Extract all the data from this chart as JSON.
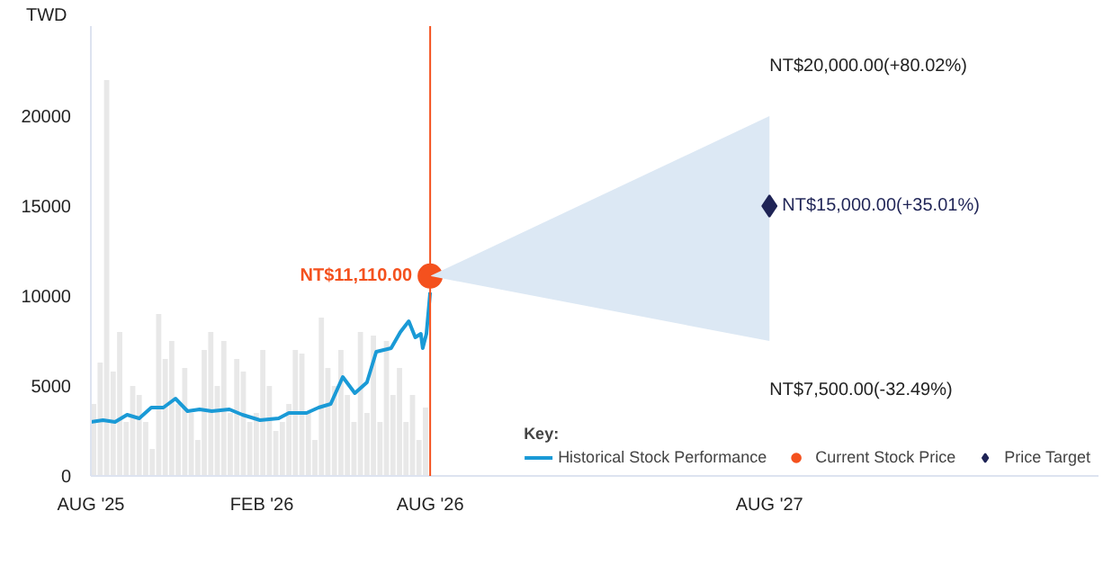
{
  "chart_data": {
    "type": "line",
    "ylabel": "TWD",
    "legend_title": "Key:",
    "legend": "bottom",
    "grid": false,
    "xlim": [
      "2025-08-01",
      "2028-07-20"
    ],
    "ylim": [
      0,
      25000
    ],
    "xticks": [
      {
        "value": "2025-08-01",
        "label": "AUG '25"
      },
      {
        "value": "2026-02-01",
        "label": "FEB '26"
      },
      {
        "value": "2026-08-01",
        "label": "AUG '26"
      },
      {
        "value": "2027-08-01",
        "label": "AUG '27"
      }
    ],
    "yticks": [
      0,
      5000,
      10000,
      15000,
      20000
    ],
    "series": [
      {
        "type": "bar",
        "color": "#e8e8e8",
        "x": [
          "2025-08-04",
          "2025-08-11",
          "2025-08-18",
          "2025-08-25",
          "2025-09-01",
          "2025-09-08",
          "2025-09-15",
          "2025-09-22",
          "2025-09-29",
          "2025-10-06",
          "2025-10-13",
          "2025-10-20",
          "2025-10-27",
          "2025-11-03",
          "2025-11-10",
          "2025-11-17",
          "2025-11-24",
          "2025-12-01",
          "2025-12-08",
          "2025-12-15",
          "2025-12-22",
          "2025-12-29",
          "2026-01-05",
          "2026-01-12",
          "2026-01-19",
          "2026-01-26",
          "2026-02-02",
          "2026-02-09",
          "2026-02-16",
          "2026-02-23",
          "2026-03-02",
          "2026-03-09",
          "2026-03-16",
          "2026-03-23",
          "2026-03-30",
          "2026-04-06",
          "2026-04-13",
          "2026-04-20",
          "2026-04-27",
          "2026-05-04",
          "2026-05-11",
          "2026-05-18",
          "2026-05-25",
          "2026-06-01",
          "2026-06-08",
          "2026-06-15",
          "2026-06-22",
          "2026-06-29",
          "2026-07-06",
          "2026-07-13",
          "2026-07-20",
          "2026-07-27"
        ],
        "values": [
          4000,
          6300,
          22000,
          5800,
          8000,
          3000,
          5000,
          4500,
          3000,
          1500,
          9000,
          6500,
          7500,
          4000,
          6000,
          3500,
          2000,
          7000,
          8000,
          5000,
          7500,
          3500,
          6500,
          5800,
          3000,
          3500,
          7000,
          5000,
          2500,
          3000,
          4000,
          7000,
          6800,
          3500,
          2000,
          8800,
          6000,
          5000,
          7000,
          4500,
          3000,
          8000,
          3500,
          7800,
          3000,
          7500,
          4500,
          6000,
          3000,
          4500,
          2000,
          3800
        ]
      },
      {
        "name": "Historical Stock Performance",
        "color": "#1a9ad6",
        "x": [
          "2025-08-01",
          "2025-08-14",
          "2025-08-27",
          "2025-09-09",
          "2025-09-22",
          "2025-10-05",
          "2025-10-18",
          "2025-10-31",
          "2025-11-13",
          "2025-11-26",
          "2025-12-09",
          "2025-12-28",
          "2026-01-11",
          "2026-01-30",
          "2026-02-19",
          "2026-03-02",
          "2026-03-21",
          "2026-04-03",
          "2026-04-16",
          "2026-04-29",
          "2026-05-12",
          "2026-05-25",
          "2026-06-04",
          "2026-06-20",
          "2026-06-30",
          "2026-07-09",
          "2026-07-16",
          "2026-07-22",
          "2026-07-24",
          "2026-07-28",
          "2026-08-01"
        ],
        "values": [
          3000,
          3100,
          3000,
          3400,
          3200,
          3800,
          3800,
          4300,
          3600,
          3700,
          3600,
          3700,
          3400,
          3100,
          3200,
          3500,
          3500,
          3800,
          4000,
          5500,
          4600,
          5200,
          6900,
          7100,
          8000,
          8600,
          7700,
          7900,
          7100,
          7900,
          10200
        ]
      },
      {
        "name": "Current Stock Price",
        "type": "scatter",
        "marker": "circle",
        "color": "#f4511e",
        "x": [
          "2026-08-01"
        ],
        "values": [
          11110
        ]
      },
      {
        "name": "Price Target",
        "type": "scatter",
        "marker": "diamond",
        "color": "#1f2456",
        "x": [
          "2026-08-01",
          "2027-08-01"
        ],
        "values": [
          null,
          15000
        ],
        "lower": [
          11110,
          7500
        ],
        "upper": [
          11110,
          20000
        ]
      }
    ],
    "ref_lines": [
      {
        "axis": "x",
        "value": "2026-08-01",
        "color": "#f4511e"
      }
    ],
    "annotations": [
      {
        "text": "NT$11,110.00",
        "x": "2026-08-01",
        "y": 11110
      },
      {
        "text": "NT$20,000.00(+80.02%)",
        "x": "2027-08-01",
        "y": 20000
      },
      {
        "text": "NT$15,000.00(+35.01%)",
        "x": "2027-08-01",
        "y": 15000
      },
      {
        "text": "NT$7,500.00(-32.49%)",
        "x": "2027-08-01",
        "y": 7500
      }
    ]
  }
}
